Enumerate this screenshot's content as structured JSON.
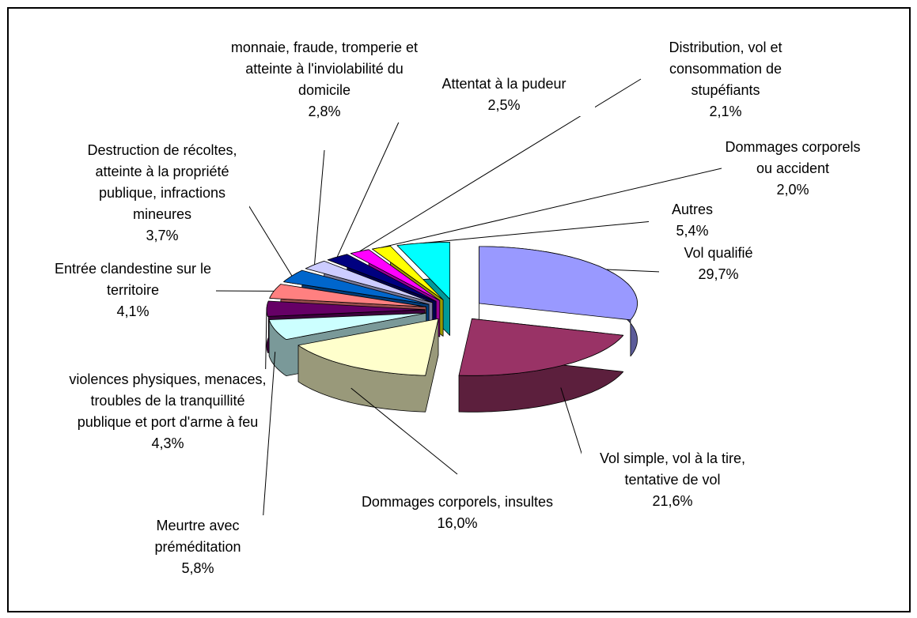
{
  "chart_data": {
    "type": "pie",
    "categories": [
      "Vol qualifié",
      "Vol simple, vol à la tire, tentative de vol",
      "Dommages corporels, insultes",
      "Meurtre avec préméditation",
      "violences physiques, menaces, troubles de la tranquillité publique et port d'arme à feu",
      "Entrée clandestine sur le territoire",
      "Destruction de récoltes, atteinte à la propriété publique, infractions mineures",
      "monnaie, fraude, tromperie et atteinte à l'inviolabilité du domicile",
      "Attentat à la pudeur",
      "Distribution, vol et consommation de stupéfiants",
      "Dommages corporels ou accident",
      "Autres"
    ],
    "values": [
      29.7,
      21.6,
      16.0,
      5.8,
      4.3,
      4.1,
      3.7,
      2.8,
      2.5,
      2.1,
      2.0,
      5.4
    ],
    "value_labels": [
      "29,7%",
      "21,6%",
      "16,0%",
      "5,8%",
      "4,3%",
      "4,1%",
      "3,7%",
      "2,8%",
      "2,5%",
      "2,1%",
      "2,0%",
      "5,4%"
    ],
    "colors": [
      "#9999FF",
      "#993366",
      "#FFFFCC",
      "#CCFFFF",
      "#660066",
      "#FF8080",
      "#0066CC",
      "#CCCCFF",
      "#000080",
      "#FF00FF",
      "#FFFF00",
      "#00FFFF"
    ]
  }
}
